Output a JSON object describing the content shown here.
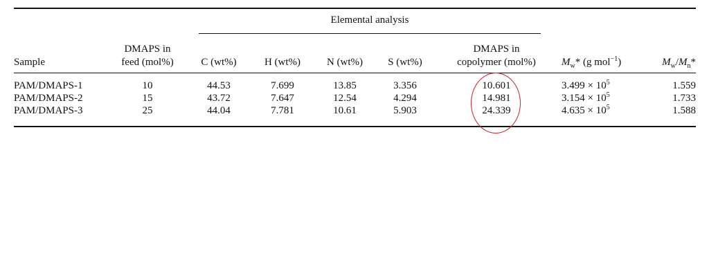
{
  "table": {
    "group_header": "Elemental analysis",
    "columns": {
      "sample": "Sample",
      "feed_line1": "DMAPS in",
      "feed_line2": "feed (mol%)",
      "c": "C (wt%)",
      "h": "H (wt%)",
      "n": "N (wt%)",
      "s": "S (wt%)",
      "copoly_line1": "DMAPS in",
      "copoly_line2": "copolymer (mol%)",
      "mw_symbol": "M",
      "mw_sub": "w",
      "mw_star": "*",
      "mw_unit": "(g mol",
      "mw_unit_exp": "−1",
      "mw_unit_close": ")",
      "pdi_m1": "M",
      "pdi_sub1": "w",
      "pdi_slash": "/",
      "pdi_m2": "M",
      "pdi_sub2": "n",
      "pdi_star": "*"
    },
    "rows": [
      {
        "sample": "PAM/DMAPS-1",
        "feed": "10",
        "c": "44.53",
        "h": "7.699",
        "n": "13.85",
        "s": "3.356",
        "copoly": "10.601",
        "mw_mant": "3.499 × 10",
        "mw_exp": "5",
        "pdi": "1.559"
      },
      {
        "sample": "PAM/DMAPS-2",
        "feed": "15",
        "c": "43.72",
        "h": "7.647",
        "n": "12.54",
        "s": "4.294",
        "copoly": "14.981",
        "mw_mant": "3.154 × 10",
        "mw_exp": "5",
        "pdi": "1.733"
      },
      {
        "sample": "PAM/DMAPS-3",
        "feed": "25",
        "c": "44.04",
        "h": "7.781",
        "n": "10.61",
        "s": "5.903",
        "copoly": "24.339",
        "mw_mant": "4.635 × 10",
        "mw_exp": "5",
        "pdi": "1.588"
      }
    ],
    "annotation_color": "#c8202a"
  }
}
